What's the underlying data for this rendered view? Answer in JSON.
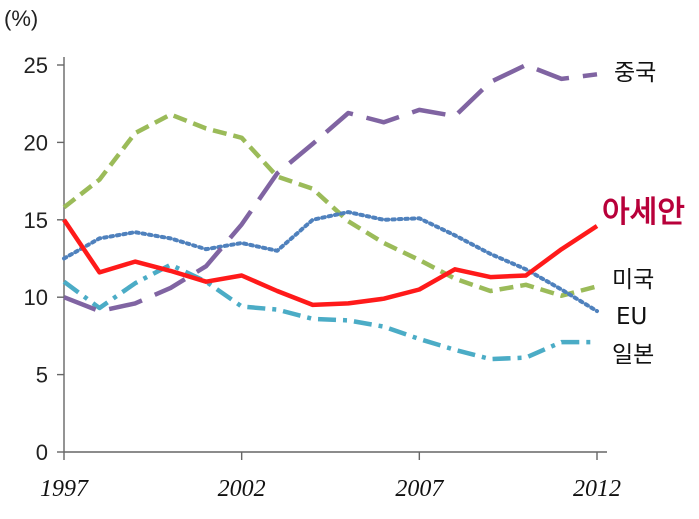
{
  "chart_data": {
    "type": "line",
    "title": "",
    "xlabel": "",
    "ylabel": "",
    "y_unit": "(%)",
    "x": [
      1997,
      1998,
      1999,
      2000,
      2001,
      2002,
      2003,
      2004,
      2005,
      2006,
      2007,
      2008,
      2009,
      2010,
      2011,
      2012
    ],
    "x_ticks": [
      "1997",
      "2002",
      "2007",
      "2012"
    ],
    "y_ticks": [
      "0",
      "5",
      "10",
      "15",
      "20",
      "25"
    ],
    "ylim": [
      0,
      25
    ],
    "xlim": [
      1997,
      2012
    ],
    "grid": false,
    "series": [
      {
        "name": "중국",
        "color": "#8064a2",
        "style": "long-dash",
        "emphasis": false,
        "values": [
          10.0,
          9.1,
          9.6,
          10.6,
          12.0,
          14.7,
          18.0,
          19.9,
          21.9,
          21.3,
          22.1,
          21.7,
          23.9,
          25.0,
          24.1,
          24.4
        ]
      },
      {
        "name": "아세안",
        "color": "#ff1a1a",
        "label_color": "#b8003a",
        "style": "solid",
        "emphasis": true,
        "values": [
          15.0,
          11.6,
          12.3,
          11.7,
          11.0,
          11.4,
          10.4,
          9.5,
          9.6,
          9.9,
          10.5,
          11.8,
          11.3,
          11.4,
          13.1,
          14.6
        ]
      },
      {
        "name": "미국",
        "color": "#4f81bd",
        "style": "dotted",
        "emphasis": false,
        "values": [
          12.5,
          13.8,
          14.2,
          13.8,
          13.1,
          13.5,
          13.0,
          15.0,
          15.5,
          15.0,
          15.1,
          14.0,
          12.8,
          11.8,
          10.5,
          9.1
        ]
      },
      {
        "name": "EU",
        "color": "#9bbb59",
        "style": "dashed",
        "emphasis": false,
        "values": [
          15.8,
          17.6,
          20.6,
          21.8,
          20.9,
          20.3,
          17.8,
          17.0,
          14.9,
          13.5,
          12.4,
          11.2,
          10.4,
          10.8,
          10.1,
          10.7
        ]
      },
      {
        "name": "일본",
        "color": "#4bacc6",
        "style": "dash-dot",
        "emphasis": false,
        "values": [
          11.0,
          9.3,
          10.9,
          12.1,
          11.0,
          9.4,
          9.2,
          8.6,
          8.5,
          8.1,
          7.3,
          6.6,
          6.0,
          6.1,
          7.1,
          7.1
        ]
      }
    ]
  }
}
